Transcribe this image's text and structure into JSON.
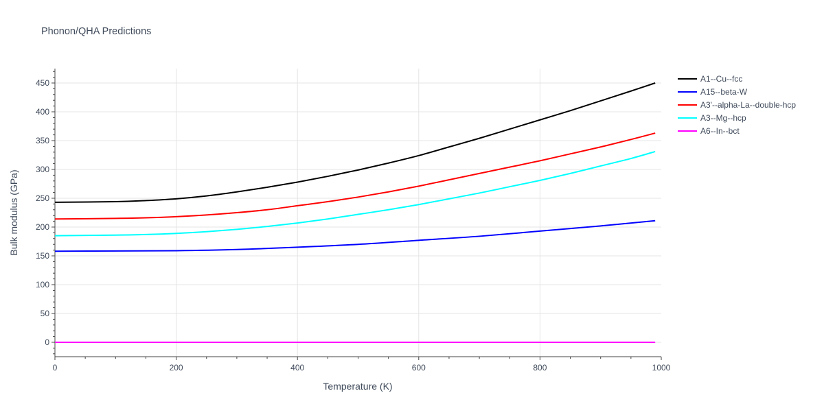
{
  "chart_data": {
    "type": "line",
    "title": "Phonon/QHA Predictions",
    "xlabel": "Temperature (K)",
    "ylabel": "Bulk modulus (GPa)",
    "xlim": [
      0,
      1000
    ],
    "ylim": [
      -25,
      475
    ],
    "x_ticks": [
      0,
      200,
      400,
      600,
      800,
      1000
    ],
    "y_ticks": [
      0,
      50,
      100,
      150,
      200,
      250,
      300,
      350,
      400,
      450
    ],
    "grid": true,
    "legend_position": "right",
    "series": [
      {
        "name": "A1--Cu--fcc",
        "color": "#000000",
        "x": [
          0,
          100,
          150,
          200,
          250,
          300,
          350,
          400,
          450,
          500,
          550,
          600,
          650,
          700,
          750,
          800,
          850,
          900,
          950,
          990
        ],
        "y": [
          243,
          244,
          246,
          249,
          254,
          261,
          269,
          278,
          288,
          299,
          311,
          324,
          339,
          354,
          370,
          386,
          402,
          419,
          436,
          450
        ]
      },
      {
        "name": "A15--beta-W",
        "color": "#0000ff",
        "x": [
          0,
          100,
          200,
          300,
          400,
          500,
          600,
          700,
          800,
          900,
          990
        ],
        "y": [
          158,
          158.5,
          159,
          161,
          165,
          170,
          177,
          184,
          193,
          202,
          211
        ]
      },
      {
        "name": "A3'--alpha-La--double-hcp",
        "color": "#ff0000",
        "x": [
          0,
          100,
          150,
          200,
          250,
          300,
          350,
          400,
          450,
          500,
          550,
          600,
          650,
          700,
          750,
          800,
          850,
          900,
          950,
          990
        ],
        "y": [
          214,
          215,
          216,
          218,
          221,
          225,
          230,
          237,
          244,
          252,
          261,
          271,
          282,
          293,
          304,
          315,
          327,
          339,
          352,
          363
        ]
      },
      {
        "name": "A3--Mg--hcp",
        "color": "#00ffff",
        "x": [
          0,
          100,
          150,
          200,
          250,
          300,
          350,
          400,
          450,
          500,
          550,
          600,
          650,
          700,
          750,
          800,
          850,
          900,
          950,
          990
        ],
        "y": [
          185,
          186,
          187,
          189,
          192,
          196,
          201,
          207,
          214,
          222,
          230,
          239,
          249,
          259,
          270,
          281,
          293,
          306,
          319,
          331
        ]
      },
      {
        "name": "A6--In--bct",
        "color": "#ff00ff",
        "x": [
          0,
          990
        ],
        "y": [
          0,
          0
        ]
      }
    ]
  }
}
